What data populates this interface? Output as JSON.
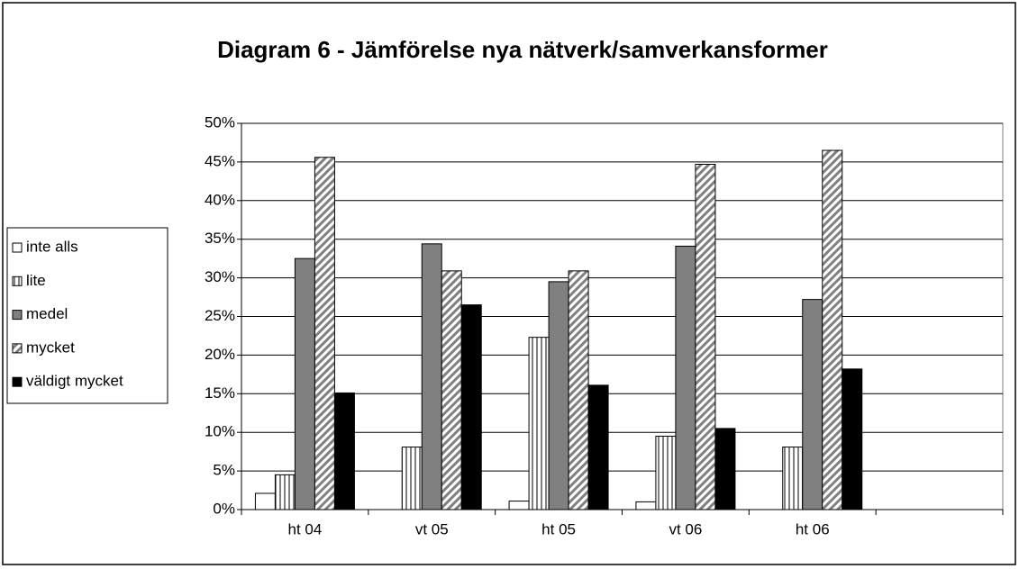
{
  "chart_data": {
    "type": "bar",
    "title": "Diagram 6 - Jämförelse nya nätverk/samverkansformer",
    "categories": [
      "ht 04",
      "vt 05",
      "ht 05",
      "vt 06",
      "ht 06",
      null
    ],
    "series": [
      {
        "name": "inte alls",
        "color": "#ffffff",
        "pattern": "solid",
        "values": [
          2.1,
          0,
          1.1,
          1.0,
          0,
          null
        ]
      },
      {
        "name": "lite",
        "color": "#ffffff",
        "pattern": "vertical",
        "values": [
          4.5,
          8.1,
          22.3,
          9.5,
          8.1,
          null
        ]
      },
      {
        "name": "medel",
        "color": "#808080",
        "pattern": "solid",
        "values": [
          32.5,
          34.4,
          29.5,
          34.1,
          27.2,
          null
        ]
      },
      {
        "name": "mycket",
        "color": "#ffffff",
        "pattern": "diagonal",
        "values": [
          45.6,
          30.9,
          30.9,
          44.7,
          46.5,
          null
        ]
      },
      {
        "name": "väldigt mycket",
        "color": "#000000",
        "pattern": "solid",
        "values": [
          15.1,
          26.5,
          16.1,
          10.5,
          18.2,
          null
        ]
      }
    ],
    "ylim": [
      0,
      50
    ],
    "yticks": [
      {
        "value": 0,
        "label": "0%"
      },
      {
        "value": 5,
        "label": "5%"
      },
      {
        "value": 10,
        "label": "10%"
      },
      {
        "value": 15,
        "label": "15%"
      },
      {
        "value": 20,
        "label": "20%"
      },
      {
        "value": 25,
        "label": "25%"
      },
      {
        "value": 30,
        "label": "30%"
      },
      {
        "value": 35,
        "label": "35%"
      },
      {
        "value": 40,
        "label": "40%"
      },
      {
        "value": 45,
        "label": "45%"
      },
      {
        "value": 50,
        "label": "50%"
      }
    ],
    "grid": true,
    "legend": "left"
  }
}
